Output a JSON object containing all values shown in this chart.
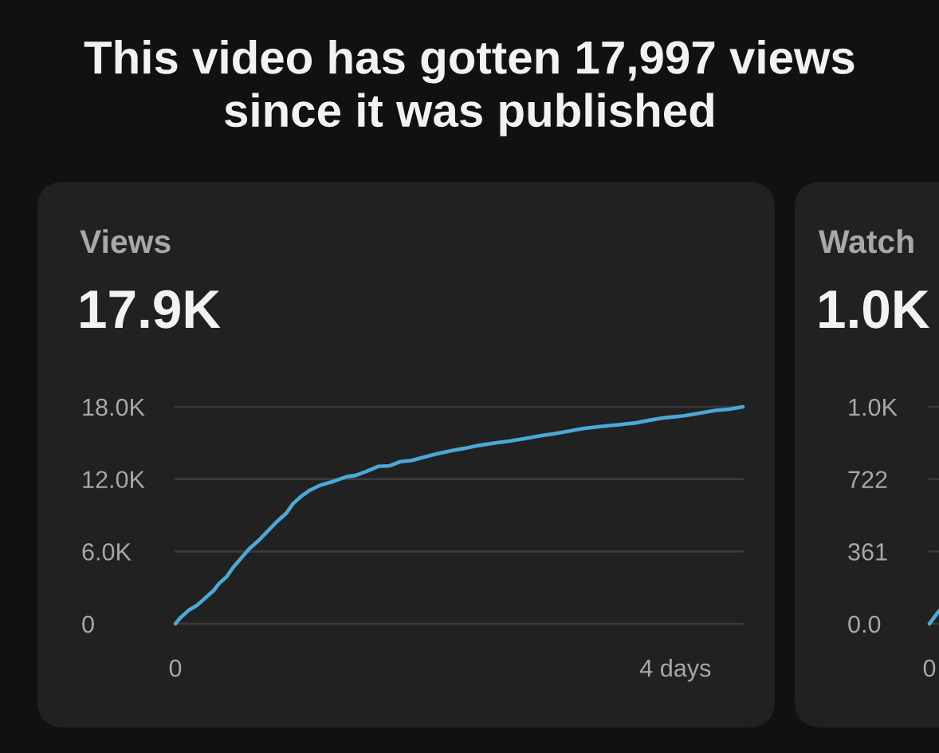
{
  "chart_data": [
    {
      "type": "other",
      "title": "This video has gotten 17,997 views since it was published"
    },
    {
      "type": "line",
      "title": "Views",
      "subtitle": "17.9K",
      "x": [
        0,
        0.04,
        0.11,
        0.17,
        0.24,
        0.31,
        0.35,
        0.41,
        0.46,
        0.53,
        0.59,
        0.67,
        0.74,
        0.81,
        0.89,
        0.94,
        1.01,
        1.07,
        1.16,
        1.21,
        1.26,
        1.37,
        1.44,
        1.53,
        1.62,
        1.71,
        1.8,
        1.89,
        1.98,
        2.09,
        2.2,
        2.31,
        2.43,
        2.56,
        2.67,
        2.79,
        2.92,
        3.02,
        3.13,
        3.26,
        3.38,
        3.53,
        3.67,
        3.8,
        3.92,
        4.07,
        4.21,
        4.32,
        4.43,
        4.54
      ],
      "series": [
        {
          "color": "#4ba9d6",
          "values": [
            0,
            500,
            1150,
            1500,
            2150,
            2800,
            3350,
            3900,
            4650,
            5500,
            6200,
            6950,
            7700,
            8450,
            9200,
            9950,
            10600,
            11050,
            11500,
            11650,
            11800,
            12200,
            12300,
            12650,
            13050,
            13100,
            13450,
            13550,
            13800,
            14100,
            14350,
            14550,
            14800,
            15000,
            15150,
            15350,
            15600,
            15750,
            15950,
            16200,
            16350,
            16500,
            16650,
            16900,
            17100,
            17250,
            17500,
            17700,
            17800,
            18000
          ]
        }
      ],
      "xlim": [
        0,
        4.54
      ],
      "xticks": [
        {
          "value": 0,
          "label": "0"
        },
        {
          "value": 4,
          "label": "4 days"
        }
      ],
      "ylim": [
        0,
        18000
      ],
      "yticks": [
        0,
        {
          "value": 6000,
          "label": "6.0K"
        },
        {
          "value": 12000,
          "label": "12.0K"
        },
        {
          "value": 18000,
          "label": "18.0K"
        }
      ],
      "grid": "y"
    },
    {
      "type": "other",
      "title": "Watch",
      "subtitle": "1.0K",
      "annotations": [
        "1.0K",
        "722",
        "361",
        "0.0",
        "0"
      ]
    }
  ]
}
